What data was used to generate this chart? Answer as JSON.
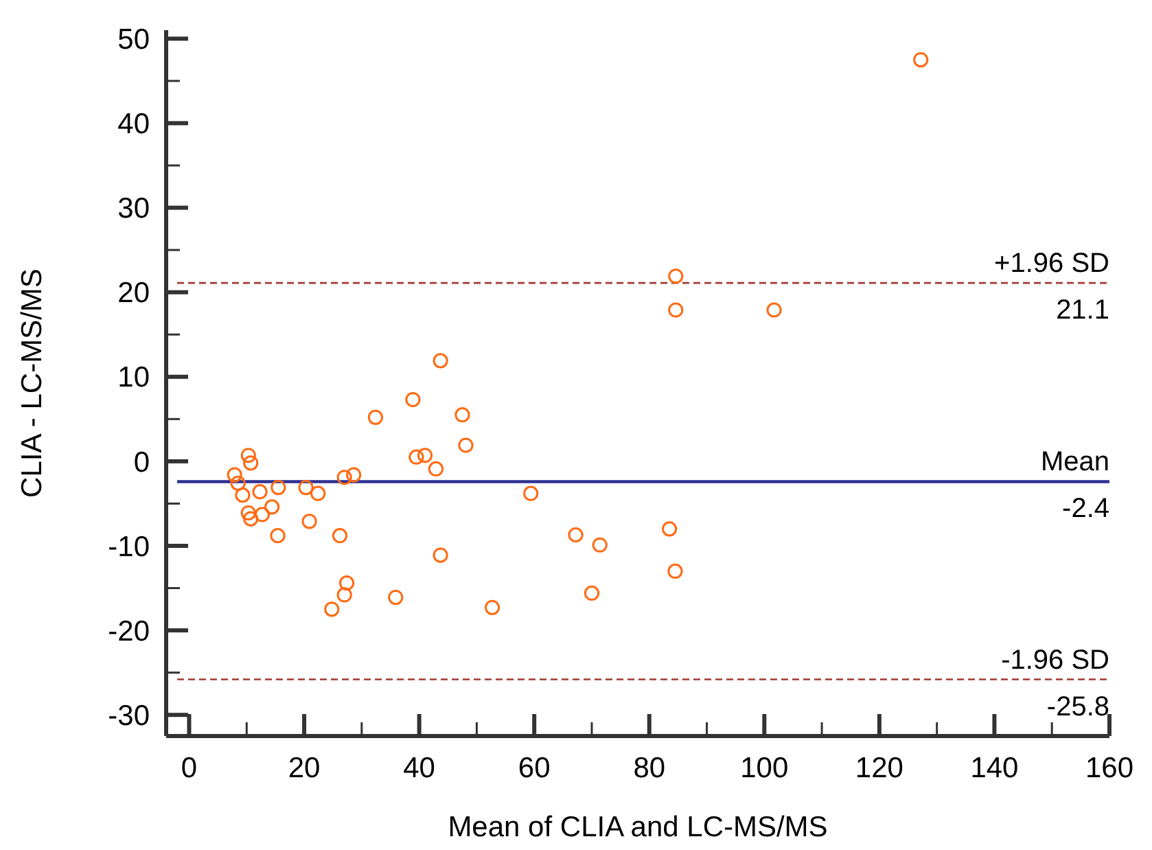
{
  "chart_data": {
    "type": "scatter",
    "xlabel": "Mean of CLIA and LC-MS/MS",
    "ylabel": "CLIA - LC-MS/MS",
    "xlim": [
      -4,
      160
    ],
    "ylim": [
      -32.5,
      51
    ],
    "xticks": [
      0,
      {
        "value": 10,
        "label": null
      },
      20,
      {
        "value": 30,
        "label": null
      },
      40,
      {
        "value": 50,
        "label": null
      },
      60,
      {
        "value": 70,
        "label": null
      },
      80,
      {
        "value": 90,
        "label": null
      },
      100,
      {
        "value": 110,
        "label": null
      },
      120,
      {
        "value": 130,
        "label": null
      },
      140,
      {
        "value": 150,
        "label": null
      },
      160
    ],
    "yticks": [
      -30,
      {
        "value": -25,
        "label": null
      },
      -20,
      {
        "value": -15,
        "label": null
      },
      -10,
      {
        "value": -5,
        "label": null
      },
      0,
      {
        "value": 5,
        "label": null
      },
      10,
      {
        "value": 15,
        "label": null
      },
      20,
      {
        "value": 25,
        "label": null
      },
      30,
      {
        "value": 35,
        "label": null
      },
      40,
      {
        "value": 45,
        "label": null
      },
      50
    ],
    "grid": false,
    "marker": "circle",
    "series": [
      {
        "color": "#ff6a13",
        "x": [
          43.7,
          38.9,
          32.4,
          47.5,
          48.1,
          10.3,
          10.7,
          7.9,
          8.5,
          9.3,
          12.3,
          15.5,
          10.3,
          10.7,
          12.7,
          14.4,
          15.4,
          20.3,
          22.4,
          20.9,
          27.0,
          28.6,
          26.2,
          27.4,
          27.0,
          24.8,
          35.9,
          43.7,
          39.5,
          41.0,
          42.9,
          59.4,
          67.2,
          71.4,
          83.5,
          84.5,
          70.0,
          52.7,
          127.2,
          84.6,
          84.6,
          101.7
        ],
        "values": [
          11.9,
          7.3,
          5.2,
          5.5,
          1.9,
          0.7,
          -0.2,
          -1.6,
          -2.6,
          -4.0,
          -3.6,
          -3.1,
          -6.1,
          -6.8,
          -6.3,
          -5.4,
          -8.8,
          -3.1,
          -3.8,
          -7.1,
          -1.9,
          -1.6,
          -8.8,
          -14.4,
          -15.8,
          -17.5,
          -16.1,
          -11.1,
          0.5,
          0.7,
          -0.9,
          -3.8,
          -8.7,
          -9.9,
          -8.0,
          -13.0,
          -15.6,
          -17.3,
          47.5,
          21.9,
          17.9,
          17.9
        ]
      }
    ],
    "ref_lines": [
      {
        "axis": "y",
        "value": 21.1,
        "label": "+1.96 SD",
        "color": "#a33a32",
        "line_style": "dashed"
      },
      {
        "axis": "y",
        "value": -2.4,
        "label": "Mean",
        "color": "#2e3192",
        "line_style": "solid"
      },
      {
        "axis": "y",
        "value": -25.8,
        "label": "-1.96 SD",
        "color": "#a33a32",
        "line_style": "dashed"
      }
    ],
    "annotations": [
      {
        "text": "21.1",
        "y": 21.1
      },
      {
        "text": "-2.4",
        "y": -2.4
      },
      {
        "text": "-25.8",
        "y": -25.8
      }
    ]
  }
}
